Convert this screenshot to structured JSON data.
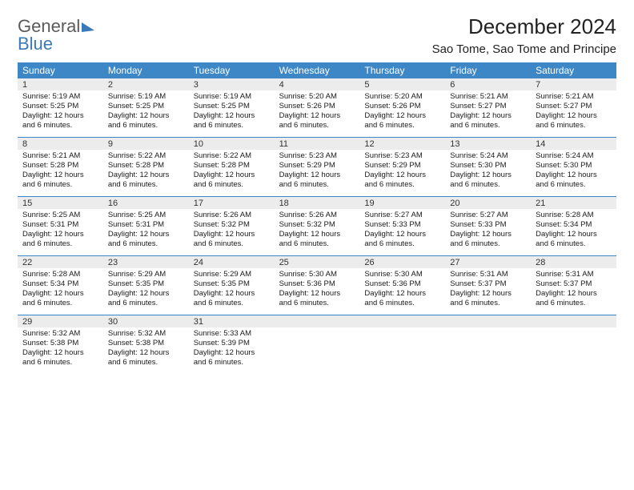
{
  "logo": {
    "word1": "General",
    "word2": "Blue"
  },
  "header": {
    "month": "December 2024",
    "location": "Sao Tome, Sao Tome and Principe"
  },
  "colors": {
    "header_bg": "#3d87c7",
    "header_text": "#ffffff",
    "daynum_bg": "#ececec",
    "rule": "#3d87c7",
    "logo_gray": "#5a5a5a",
    "logo_blue": "#3a7ab8"
  },
  "dow": [
    "Sunday",
    "Monday",
    "Tuesday",
    "Wednesday",
    "Thursday",
    "Friday",
    "Saturday"
  ],
  "labels": {
    "sunrise": "Sunrise: ",
    "sunset": "Sunset: ",
    "daylight_prefix": "Daylight: ",
    "daylight_value": "12 hours and 6 minutes."
  },
  "weeks": [
    [
      {
        "n": "1",
        "rise": "5:19 AM",
        "set": "5:25 PM"
      },
      {
        "n": "2",
        "rise": "5:19 AM",
        "set": "5:25 PM"
      },
      {
        "n": "3",
        "rise": "5:19 AM",
        "set": "5:25 PM"
      },
      {
        "n": "4",
        "rise": "5:20 AM",
        "set": "5:26 PM"
      },
      {
        "n": "5",
        "rise": "5:20 AM",
        "set": "5:26 PM"
      },
      {
        "n": "6",
        "rise": "5:21 AM",
        "set": "5:27 PM"
      },
      {
        "n": "7",
        "rise": "5:21 AM",
        "set": "5:27 PM"
      }
    ],
    [
      {
        "n": "8",
        "rise": "5:21 AM",
        "set": "5:28 PM"
      },
      {
        "n": "9",
        "rise": "5:22 AM",
        "set": "5:28 PM"
      },
      {
        "n": "10",
        "rise": "5:22 AM",
        "set": "5:28 PM"
      },
      {
        "n": "11",
        "rise": "5:23 AM",
        "set": "5:29 PM"
      },
      {
        "n": "12",
        "rise": "5:23 AM",
        "set": "5:29 PM"
      },
      {
        "n": "13",
        "rise": "5:24 AM",
        "set": "5:30 PM"
      },
      {
        "n": "14",
        "rise": "5:24 AM",
        "set": "5:30 PM"
      }
    ],
    [
      {
        "n": "15",
        "rise": "5:25 AM",
        "set": "5:31 PM"
      },
      {
        "n": "16",
        "rise": "5:25 AM",
        "set": "5:31 PM"
      },
      {
        "n": "17",
        "rise": "5:26 AM",
        "set": "5:32 PM"
      },
      {
        "n": "18",
        "rise": "5:26 AM",
        "set": "5:32 PM"
      },
      {
        "n": "19",
        "rise": "5:27 AM",
        "set": "5:33 PM"
      },
      {
        "n": "20",
        "rise": "5:27 AM",
        "set": "5:33 PM"
      },
      {
        "n": "21",
        "rise": "5:28 AM",
        "set": "5:34 PM"
      }
    ],
    [
      {
        "n": "22",
        "rise": "5:28 AM",
        "set": "5:34 PM"
      },
      {
        "n": "23",
        "rise": "5:29 AM",
        "set": "5:35 PM"
      },
      {
        "n": "24",
        "rise": "5:29 AM",
        "set": "5:35 PM"
      },
      {
        "n": "25",
        "rise": "5:30 AM",
        "set": "5:36 PM"
      },
      {
        "n": "26",
        "rise": "5:30 AM",
        "set": "5:36 PM"
      },
      {
        "n": "27",
        "rise": "5:31 AM",
        "set": "5:37 PM"
      },
      {
        "n": "28",
        "rise": "5:31 AM",
        "set": "5:37 PM"
      }
    ],
    [
      {
        "n": "29",
        "rise": "5:32 AM",
        "set": "5:38 PM"
      },
      {
        "n": "30",
        "rise": "5:32 AM",
        "set": "5:38 PM"
      },
      {
        "n": "31",
        "rise": "5:33 AM",
        "set": "5:39 PM"
      },
      null,
      null,
      null,
      null
    ]
  ]
}
